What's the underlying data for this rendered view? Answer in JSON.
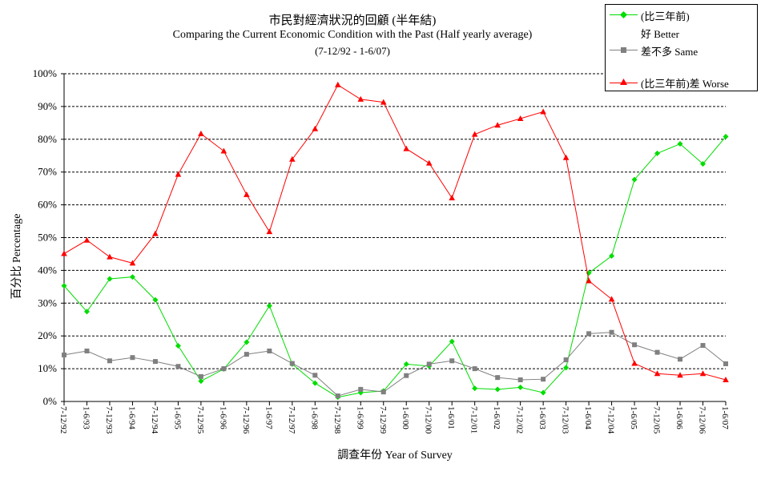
{
  "title_line1": "市民對經濟狀況的回顧 (半年結)",
  "title_line2": "Comparing the Current Economic Condition with the Past  (Half yearly average)",
  "title_line3": "(7-12/92 - 1-6/07)",
  "legend": {
    "better_line1": "(比三年前)",
    "better_line2": "好 Better",
    "same": "差不多 Same",
    "worse": "(比三年前)差 Worse"
  },
  "chart_data": {
    "type": "line",
    "xlabel": "調查年份 Year of Survey",
    "ylabel": "百分比 Percentage",
    "ylim": [
      0,
      100
    ],
    "yticks": [
      "0%",
      "10%",
      "20%",
      "30%",
      "40%",
      "50%",
      "60%",
      "70%",
      "80%",
      "90%",
      "100%"
    ],
    "grid": "horizontal dashed",
    "legend_position": "top-right",
    "categories": [
      "7-12/92",
      "1-6/93",
      "7-12/93",
      "1-6/94",
      "7-12/94",
      "1-6/95",
      "7-12/95",
      "1-6/96",
      "7-12/96",
      "1-6/97",
      "7-12/97",
      "1-6/98",
      "7-12/98",
      "1-6/99",
      "7-12/99",
      "1-6/00",
      "7-12/00",
      "1-6/01",
      "7-12/01",
      "1-6/02",
      "7-12/02",
      "1-6/03",
      "7-12/03",
      "1-6/04",
      "7-12/04",
      "1-6/05",
      "7-12/05",
      "1-6/06",
      "7-12/06",
      "1-6/07"
    ],
    "series": [
      {
        "name": "(比三年前) 好 Better",
        "color": "#00dd00",
        "marker": "diamond",
        "values": [
          35.3,
          27.4,
          37.4,
          38.0,
          31.0,
          17.0,
          6.2,
          9.9,
          18.1,
          29.2,
          11.4,
          5.6,
          1.3,
          2.7,
          3.2,
          11.4,
          10.8,
          18.3,
          4.0,
          3.7,
          4.3,
          2.7,
          10.3,
          39.2,
          44.4,
          67.7,
          75.7,
          78.6,
          72.5,
          80.8
        ]
      },
      {
        "name": "差不多 Same",
        "color": "#808080",
        "marker": "square",
        "values": [
          14.2,
          15.4,
          12.4,
          13.4,
          12.2,
          10.7,
          7.6,
          10.0,
          14.4,
          15.4,
          11.6,
          8.0,
          1.7,
          3.7,
          2.9,
          7.9,
          11.4,
          12.4,
          10.0,
          7.3,
          6.6,
          6.8,
          12.7,
          20.7,
          21.1,
          17.3,
          15.0,
          12.9,
          17.1,
          11.5
        ]
      },
      {
        "name": "(比三年前)差 Worse",
        "color": "#ff0000",
        "marker": "triangle",
        "values": [
          45.1,
          49.2,
          44.1,
          42.2,
          51.2,
          69.3,
          81.7,
          76.4,
          63.1,
          51.8,
          73.9,
          83.2,
          96.6,
          92.2,
          91.3,
          77.1,
          72.7,
          62.1,
          81.5,
          84.3,
          86.3,
          88.4,
          74.4,
          36.8,
          31.2,
          11.6,
          8.5,
          8.0,
          8.5,
          6.6
        ]
      }
    ]
  }
}
